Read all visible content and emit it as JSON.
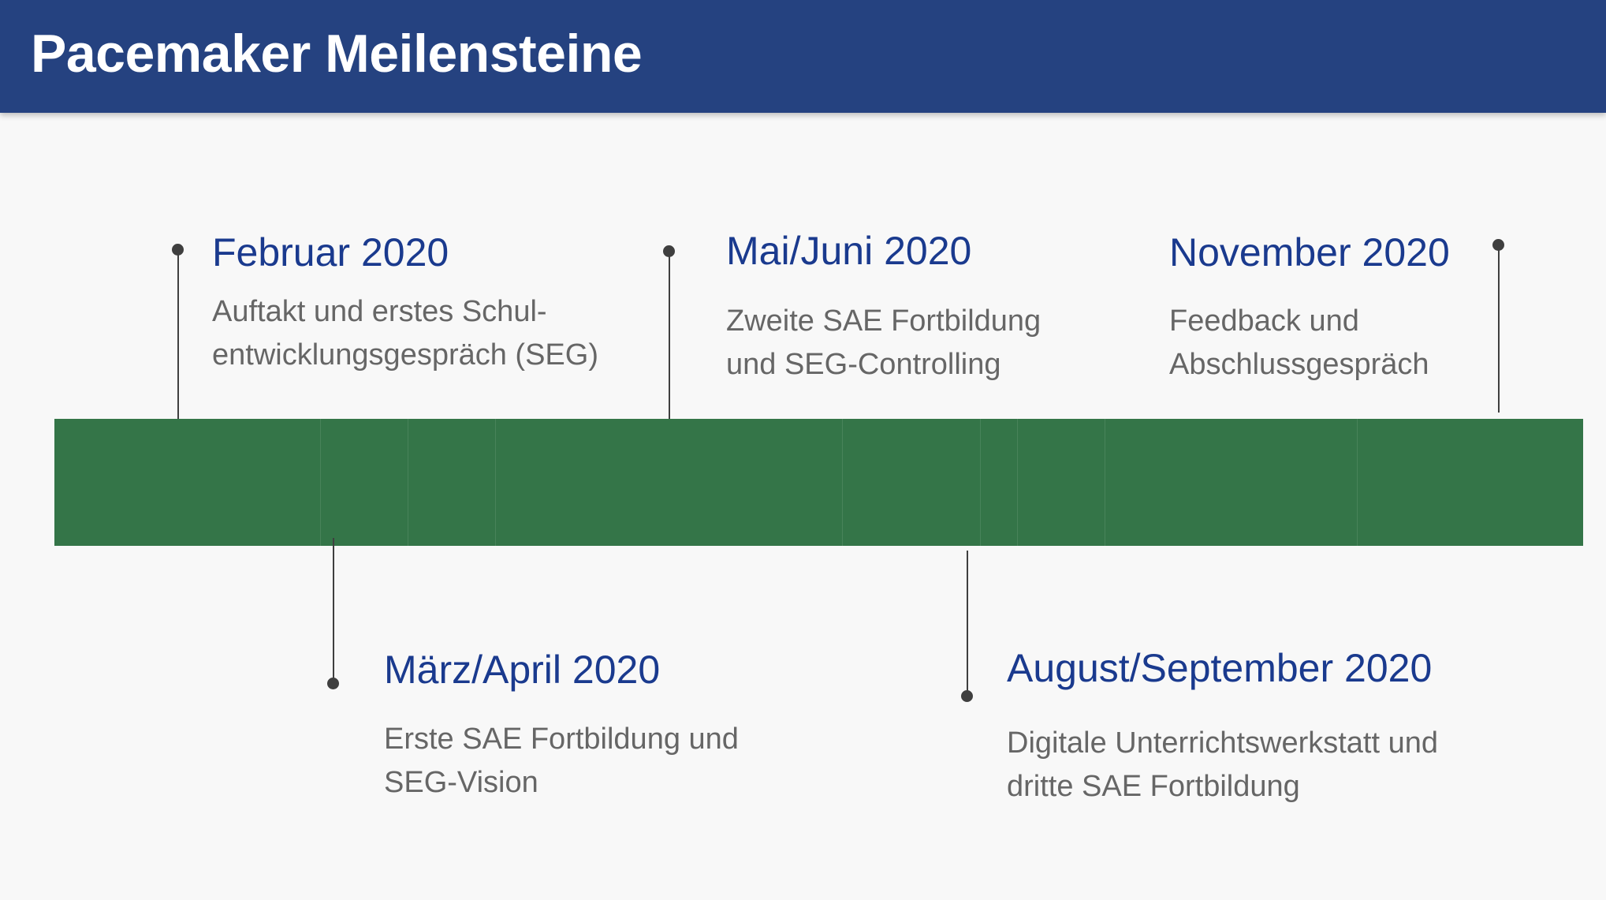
{
  "header": {
    "title": "Pacemaker Meilensteine"
  },
  "colors": {
    "header_bg": "#254280",
    "bar": "#347548",
    "date_text": "#1a3a8e",
    "desc_text": "#666666",
    "connector": "#3f3f3f",
    "background": "#f8f8f8"
  },
  "milestones": [
    {
      "date": "Februar 2020",
      "lines": [
        "Auftakt und erstes Schul-",
        "entwicklungsgespräch (SEG)"
      ]
    },
    {
      "date": "März/April 2020",
      "lines": [
        "Erste SAE Fortbildung und",
        "SEG-Vision"
      ]
    },
    {
      "date": "Mai/Juni 2020",
      "lines": [
        "Zweite SAE Fortbildung",
        "und SEG-Controlling"
      ]
    },
    {
      "date": "August/September 2020",
      "lines": [
        "Digitale Unterrichtswerkstatt und",
        "dritte SAE Fortbildung"
      ]
    },
    {
      "date": "November 2020",
      "lines": [
        "Feedback und",
        "Abschlussgespräch"
      ]
    }
  ]
}
